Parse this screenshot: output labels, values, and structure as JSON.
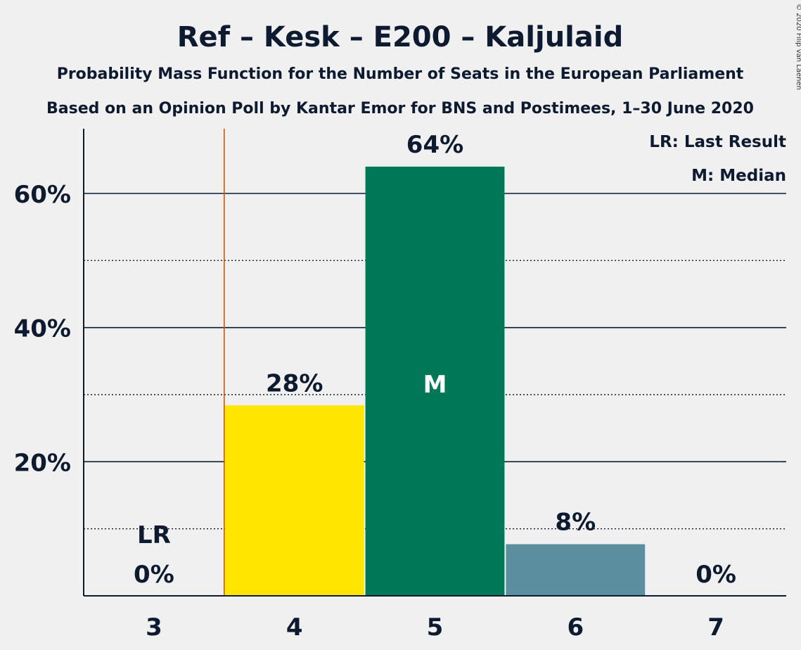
{
  "copyright": "© 2020 Filip van Laenen",
  "chart_data": {
    "type": "bar",
    "title": "Ref – Kesk – E200 – Kaljulaid",
    "subtitle": "Probability Mass Function for the Number of Seats in the European Parliament",
    "subtitle2": "Based on an Opinion Poll by Kantar Emor for BNS and Postimees, 1–30 June 2020",
    "categories": [
      "3",
      "4",
      "5",
      "6",
      "7"
    ],
    "values": [
      0,
      28.4,
      64,
      7.7,
      0
    ],
    "value_labels": [
      "0%",
      "28%",
      "64%",
      "8%",
      "0%"
    ],
    "bar_colors": [
      "#0e1a30",
      "#ffe500",
      "#007858",
      "#5b8fa0",
      "#0e1a30"
    ],
    "ylim": [
      0,
      70
    ],
    "yticks": [
      20,
      40,
      60
    ],
    "ytick_labels": [
      "20%",
      "40%",
      "60%"
    ],
    "minor_gridlines": [
      10,
      30,
      50
    ],
    "last_result_seat": "3",
    "last_result_label": "LR",
    "median_seat": "5",
    "median_label": "M",
    "last_result_line_color": "#c85a0a",
    "legend": [
      "LR: Last Result",
      "M: Median"
    ],
    "legend_position": "top-right",
    "grid": true
  }
}
